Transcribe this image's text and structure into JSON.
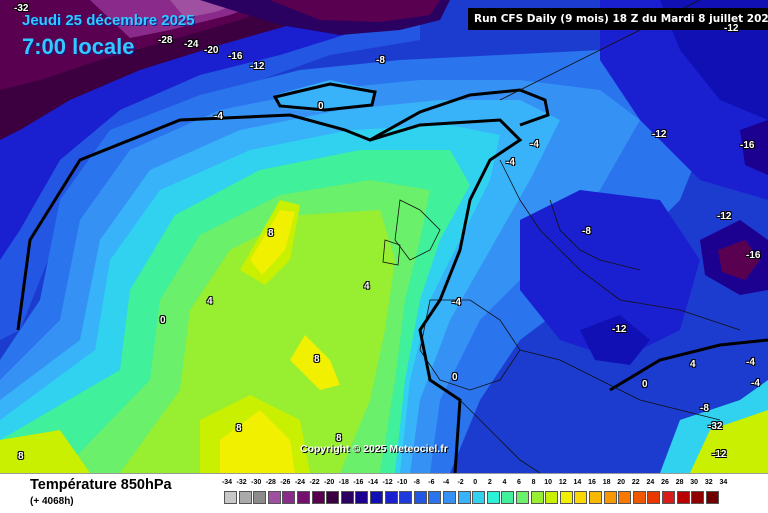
{
  "header": {
    "run_info": "Run CFS Daily (9 mois) 18 Z du Mardi 8 juillet 2025",
    "date_text": "Jeudi 25 décembre 2025",
    "time_text": "7:00 locale"
  },
  "footer": {
    "variable_title": "Température 850hPa",
    "forecast_hours": "(+ 4068h)",
    "copyright": "Copyright © 2025 Meteociel.fr"
  },
  "contour_labels": [
    {
      "text": "-32"
    },
    {
      "text": "-28"
    },
    {
      "text": "-24"
    },
    {
      "text": "-20"
    },
    {
      "text": "-16"
    },
    {
      "text": "-12"
    },
    {
      "text": "-8"
    },
    {
      "text": "0"
    },
    {
      "text": "-4"
    },
    {
      "text": "-4"
    },
    {
      "text": "-4"
    },
    {
      "text": "-12"
    },
    {
      "text": "-16"
    },
    {
      "text": "-12"
    },
    {
      "text": "-8"
    },
    {
      "text": "-16"
    },
    {
      "text": "8"
    },
    {
      "text": "4"
    },
    {
      "text": "4"
    },
    {
      "text": "0"
    },
    {
      "text": "-4"
    },
    {
      "text": "8"
    },
    {
      "text": "-12"
    },
    {
      "text": "0"
    },
    {
      "text": "4"
    },
    {
      "text": "0"
    },
    {
      "text": "-4"
    },
    {
      "text": "-4"
    },
    {
      "text": "8"
    },
    {
      "text": "-12"
    },
    {
      "text": "8"
    },
    {
      "text": "8"
    },
    {
      "text": "-8"
    },
    {
      "text": "-12"
    },
    {
      "text": "-32"
    }
  ],
  "legend": {
    "values": [
      "-34",
      "-32",
      "-30",
      "-28",
      "-26",
      "-24",
      "-22",
      "-20",
      "-18",
      "-16",
      "-14",
      "-12",
      "-10",
      "-8",
      "-6",
      "-4",
      "-2",
      "0",
      "2",
      "4",
      "6",
      "8",
      "10",
      "12",
      "14",
      "16",
      "18",
      "20",
      "22",
      "24",
      "26",
      "28",
      "30",
      "32",
      "34"
    ],
    "colors": [
      "#c8c8c8",
      "#aaaaaa",
      "#8c8c8c",
      "#a050a0",
      "#8a2a8a",
      "#74106e",
      "#5a0050",
      "#3c0040",
      "#2a0060",
      "#1c0090",
      "#1010b4",
      "#1a20d0",
      "#1f3bdc",
      "#2456e4",
      "#2a74ee",
      "#3592f4",
      "#38b2f8",
      "#30d2f0",
      "#2cf0d8",
      "#40f09a",
      "#6af06a",
      "#98ee30",
      "#c8f000",
      "#f0f000",
      "#f8d800",
      "#f8b800",
      "#f89800",
      "#f87800",
      "#f05800",
      "#e83800",
      "#d81c1c",
      "#b80000",
      "#900000",
      "#700000",
      "#500000"
    ]
  },
  "colors": {
    "map_deep_blue": "#1a3fd6",
    "boundary_line": "#000000"
  }
}
